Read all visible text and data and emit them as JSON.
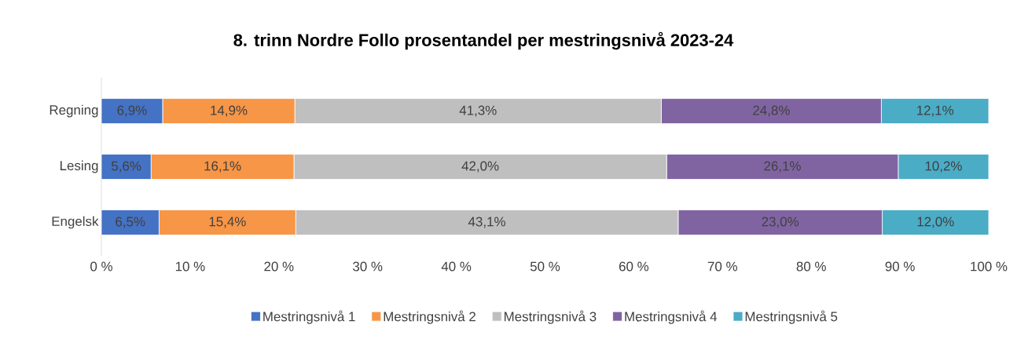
{
  "chart_data": {
    "type": "bar",
    "orientation": "horizontal",
    "stacked": true,
    "title": "8. trinn Nordre Follo prosentandel per mestringsnivå 2023-24",
    "categories": [
      "Regning",
      "Lesing",
      "Engelsk"
    ],
    "series": [
      {
        "name": "Mestringsnivå 1",
        "color": "#4472c4",
        "values": [
          6.9,
          5.6,
          6.5
        ],
        "value_labels": [
          "6,9%",
          "5,6%",
          "6,5%"
        ]
      },
      {
        "name": "Mestringsnivå 2",
        "color": "#f79646",
        "values": [
          14.9,
          16.1,
          15.4
        ],
        "value_labels": [
          "14,9%",
          "16,1%",
          "15,4%"
        ]
      },
      {
        "name": "Mestringsnivå 3",
        "color": "#bfbfbf",
        "values": [
          41.3,
          42.0,
          43.1
        ],
        "value_labels": [
          "41,3%",
          "42,0%",
          "43,1%"
        ]
      },
      {
        "name": "Mestringsnivå 4",
        "color": "#8064a2",
        "values": [
          24.8,
          26.1,
          23.0
        ],
        "value_labels": [
          "24,8%",
          "26,1%",
          "23,0%"
        ]
      },
      {
        "name": "Mestringsnivå 5",
        "color": "#4bacc6",
        "values": [
          12.1,
          10.2,
          12.0
        ],
        "value_labels": [
          "12,1%",
          "10,2%",
          "12,0%"
        ]
      }
    ],
    "xlim": [
      0,
      100
    ],
    "xticks": [
      {
        "value": 0,
        "label": "0 %"
      },
      {
        "value": 10,
        "label": "10 %"
      },
      {
        "value": 20,
        "label": "20 %"
      },
      {
        "value": 30,
        "label": "30 %"
      },
      {
        "value": 40,
        "label": "40 %"
      },
      {
        "value": 50,
        "label": "50 %"
      },
      {
        "value": 60,
        "label": "60 %"
      },
      {
        "value": 70,
        "label": "70 %"
      },
      {
        "value": 80,
        "label": "80 %"
      },
      {
        "value": 90,
        "label": "90 %"
      },
      {
        "value": 100,
        "label": "100 %"
      }
    ],
    "legend": "bottom"
  }
}
